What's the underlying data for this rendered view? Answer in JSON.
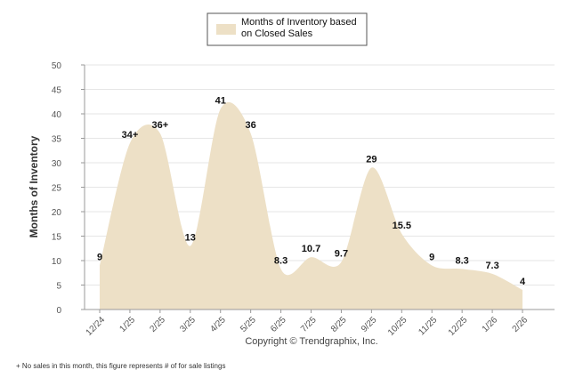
{
  "chart_data": {
    "type": "area",
    "title": "",
    "legend": {
      "line1": "Months of Inventory based",
      "line2": "on Closed Sales",
      "color": "#ede0c6",
      "placement": "top-center"
    },
    "ylabel": "Months of Inventory",
    "xlabel": "",
    "ylim": [
      0,
      50
    ],
    "yticks": [
      0,
      5,
      10,
      15,
      20,
      25,
      30,
      35,
      40,
      45,
      50
    ],
    "categories": [
      "12/24",
      "1/25",
      "2/25",
      "3/25",
      "4/25",
      "5/25",
      "6/25",
      "7/25",
      "8/25",
      "9/25",
      "10/25",
      "11/25",
      "12/25",
      "1/26",
      "2/26"
    ],
    "values": [
      9,
      34,
      36,
      13,
      41,
      36,
      8.3,
      10.7,
      9.7,
      29,
      15.5,
      9,
      8.3,
      7.3,
      4
    ],
    "labels": [
      "9",
      "34+",
      "36+",
      "13",
      "41",
      "36",
      "8.3",
      "10.7",
      "9.7",
      "29",
      "15.5",
      "9",
      "8.3",
      "7.3",
      "4"
    ],
    "fill_color": "#ede0c6",
    "grid": true,
    "copyright": "Copyright © Trendgraphix, Inc.",
    "footnote": "+ No sales in this month, this figure represents # of for sale listings"
  }
}
